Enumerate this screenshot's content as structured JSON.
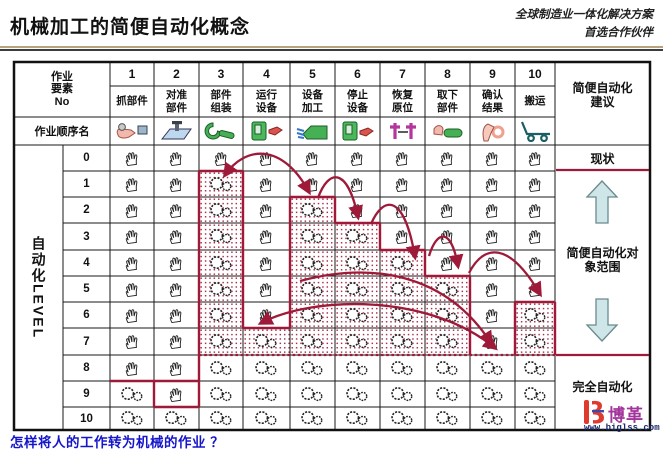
{
  "page": {
    "title": "机械加工的简便自动化概念",
    "tagline_line1": "全球制造业一体化解决方案",
    "tagline_line2": "首选合作伙伴",
    "footer_question": "怎样将人的工作转为机械的作业 ？"
  },
  "logo": {
    "text": "博革",
    "url": "www.biglss.com"
  },
  "matrix": {
    "corner_label": "作业\n要素\nNo",
    "sequence_row_label": "作业顺序名",
    "level_axis_label": "自动化LEVEL",
    "row_labels": [
      "0",
      "1",
      "2",
      "3",
      "4",
      "5",
      "6",
      "7",
      "8",
      "9",
      "10"
    ],
    "cell_icons": {
      "manual": "hand-icon",
      "auto": "gears-icon"
    },
    "columns": [
      {
        "no": "1",
        "label": "抓部件",
        "icon": "grab-part-icon",
        "auto_from": 9,
        "dotted": []
      },
      {
        "no": "2",
        "label": "对准\n部件",
        "icon": "align-part-icon",
        "auto_from": 10,
        "dotted": []
      },
      {
        "no": "3",
        "label": "部件\n组装",
        "icon": "assemble-part-icon",
        "auto_from": 1,
        "dotted": [
          1,
          7
        ]
      },
      {
        "no": "4",
        "label": "运行\n设备",
        "icon": "run-equipment-icon",
        "auto_from": 7,
        "dotted": [
          7,
          7
        ]
      },
      {
        "no": "5",
        "label": "设备\n加工",
        "icon": "machining-icon",
        "auto_from": 2,
        "dotted": [
          2,
          7
        ]
      },
      {
        "no": "6",
        "label": "停止\n设备",
        "icon": "stop-equipment-icon",
        "auto_from": 3,
        "dotted": [
          3,
          7
        ]
      },
      {
        "no": "7",
        "label": "恢复\n原位",
        "icon": "reset-position-icon",
        "auto_from": 4,
        "dotted": [
          4,
          7
        ]
      },
      {
        "no": "8",
        "label": "取下\n部件",
        "icon": "remove-part-icon",
        "auto_from": 5,
        "dotted": [
          5,
          7
        ]
      },
      {
        "no": "9",
        "label": "确认\n结果",
        "icon": "confirm-result-icon",
        "auto_from": 8,
        "dotted": []
      },
      {
        "no": "10",
        "label": "搬运",
        "icon": "transport-icon",
        "auto_from": 6,
        "dotted": [
          6,
          7
        ]
      }
    ]
  },
  "side_panel": {
    "header": "简便自动化\n建议",
    "current_status": "现状",
    "target_range": "简便自动化对\n象范围",
    "full_auto": "完全自动化"
  },
  "colors": {
    "accent_red": "#9e1a38",
    "question_blue": "#1515cc",
    "block_arrow_fill": "#cfe6e9",
    "machine_green": "#45b054",
    "hand_pink": "#f2b8ad",
    "reset_magenta": "#b5379b"
  }
}
